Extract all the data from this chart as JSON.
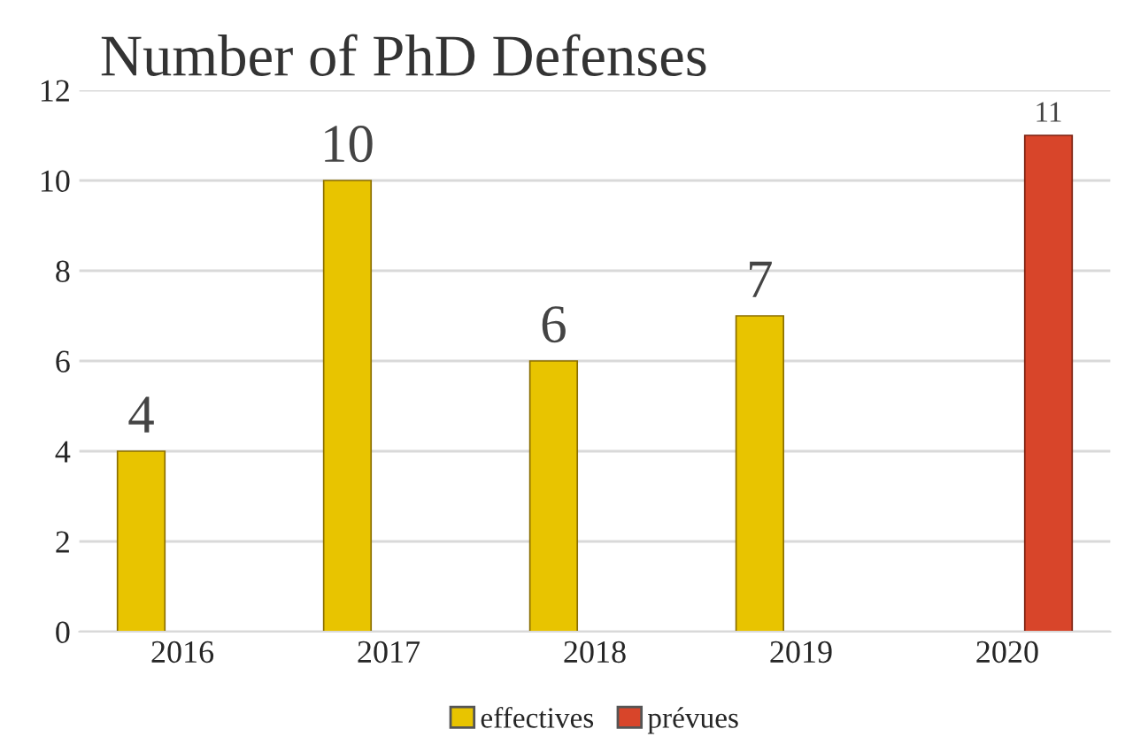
{
  "chart_data": {
    "type": "bar",
    "title": "Number of PhD Defenses",
    "categories": [
      "2016",
      "2017",
      "2018",
      "2019",
      "2020"
    ],
    "series": [
      {
        "name": "effectives",
        "color": "#e8c400",
        "values": [
          4,
          10,
          6,
          7,
          null
        ]
      },
      {
        "name": "prévues",
        "color": "#d8452a",
        "values": [
          null,
          null,
          null,
          null,
          11
        ]
      }
    ],
    "ylim": [
      0,
      12
    ],
    "yticks": [
      0,
      2,
      4,
      6,
      8,
      10,
      12
    ],
    "grid": "y",
    "legend": "bottom",
    "data_labels": true
  }
}
